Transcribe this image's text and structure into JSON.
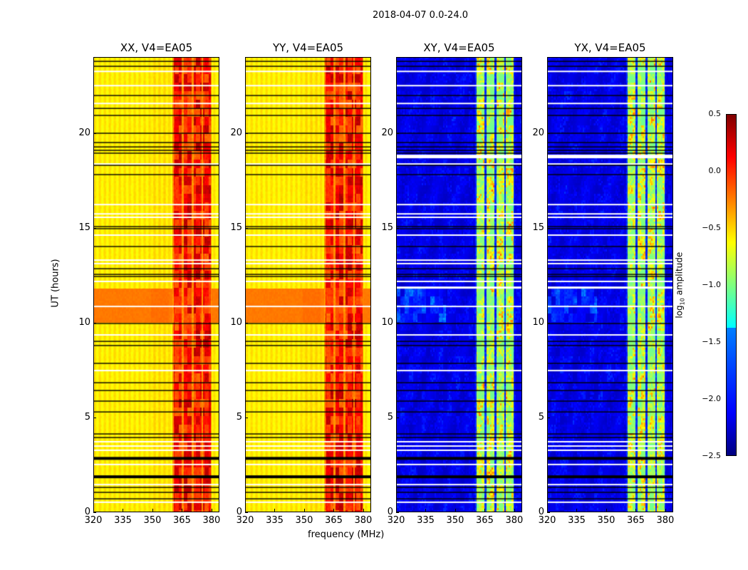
{
  "chart_data": {
    "type": "heatmap",
    "suptitle": "2018-04-07 0.0-24.0",
    "panels": [
      {
        "title": "XX, V4=EA05",
        "kind": "parallel"
      },
      {
        "title": "YY, V4=EA05",
        "kind": "parallel"
      },
      {
        "title": "XY, V4=EA05",
        "kind": "cross"
      },
      {
        "title": "YX, V4=EA05",
        "kind": "cross"
      }
    ],
    "xlabel": "frequency (MHz)",
    "ylabel": "UT (hours)",
    "xlim": [
      320,
      384
    ],
    "ylim": [
      0,
      24
    ],
    "xticks": [
      "320",
      "335",
      "350",
      "365",
      "380"
    ],
    "yticks": [
      "0",
      "5",
      "10",
      "15",
      "20"
    ],
    "colorbar": {
      "label": "log10 amplitude",
      "label_main": "log",
      "label_sub": "10",
      "label_rest": " amplitude",
      "vmin": -2.5,
      "vmax": 0.5,
      "ticks": [
        "0.5",
        "0.0",
        "−0.5",
        "−1.0",
        "−1.5",
        "−2.0",
        "−2.5"
      ],
      "cmap": "jet"
    },
    "levels": {
      "parallel_background": -0.6,
      "parallel_band_10_12h": -0.25,
      "parallel_emission": 0.1,
      "cross_background": -2.25,
      "cross_emission": -0.8
    },
    "emission_columns_mhz": [
      [
        360.5,
        364.8
      ],
      [
        365.8,
        369.8
      ],
      [
        370.9,
        374.8
      ],
      [
        375.6,
        379.3
      ]
    ],
    "flag_black_hours": [
      23.77,
      23.51,
      21.97,
      21.29,
      20.92,
      19.98,
      19.49,
      19.26,
      19.08,
      18.93,
      18.29,
      17.8,
      15.06,
      14.95,
      14.01,
      12.84,
      12.54,
      12.43,
      9.95,
      9.01,
      8.79,
      7.85,
      6.83,
      6.42,
      5.86,
      5.29,
      4.13,
      3.94,
      2.89,
      1.92,
      1.31,
      1.05,
      0.71
    ],
    "flag_white_hours": [
      23.24,
      22.49,
      21.55,
      18.36,
      16.22,
      15.73,
      15.55,
      14.61,
      13.29,
      13.11,
      12.17,
      10.85,
      9.35,
      7.47,
      3.72,
      3.49,
      3.27,
      2.52,
      1.46,
      0.53
    ]
  }
}
